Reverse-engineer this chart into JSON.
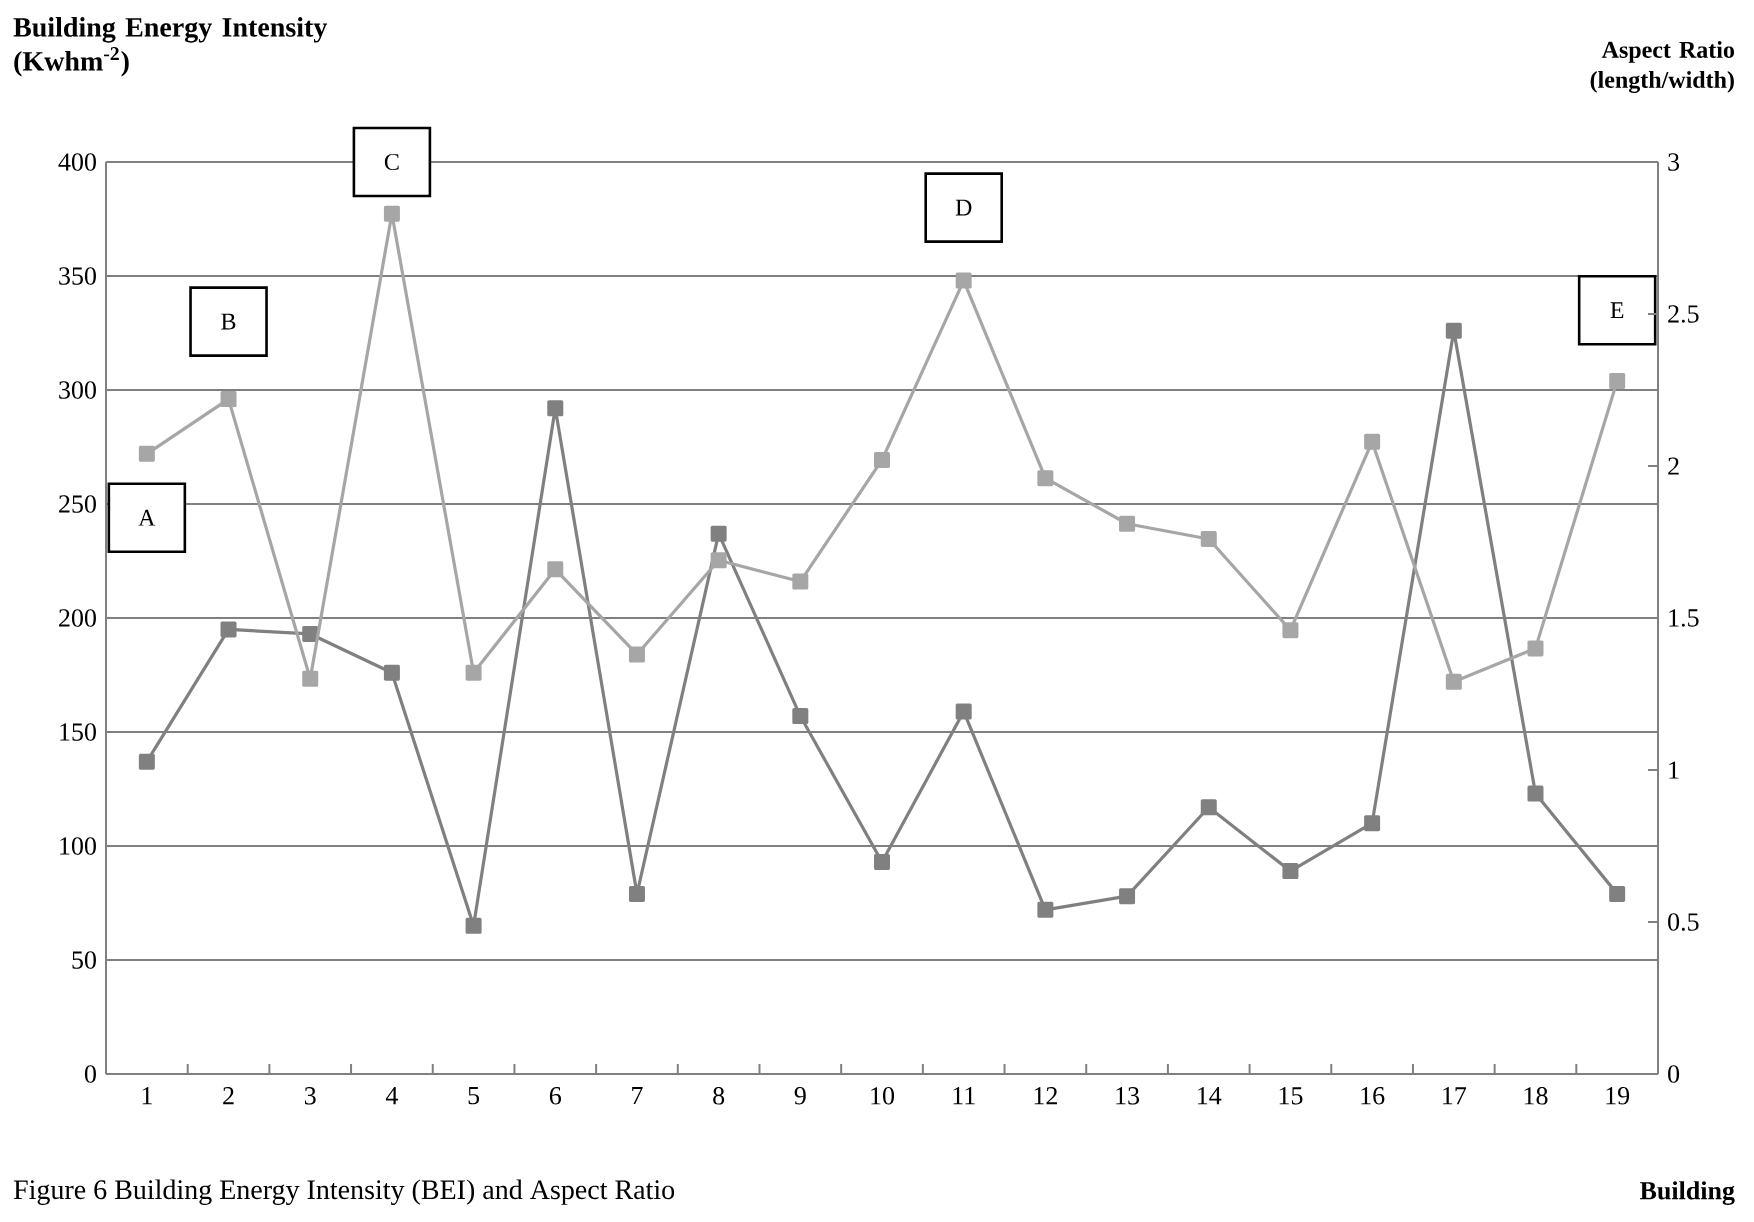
{
  "chart_data": {
    "type": "line",
    "xlabel": "Building",
    "ylabel": "Building Energy Intensity (Kwhm$^{-2}$)",
    "y2label": "Aspect Ratio (length/width)",
    "categories": [
      "1",
      "2",
      "3",
      "4",
      "5",
      "6",
      "7",
      "8",
      "9",
      "10",
      "11",
      "12",
      "13",
      "14",
      "15",
      "16",
      "17",
      "18",
      "19"
    ],
    "series": [
      {
        "color": "#808080",
        "values": [
          137,
          195,
          193,
          176,
          65,
          292,
          79,
          237,
          157,
          93,
          159,
          72,
          78,
          117,
          89,
          110,
          326,
          123,
          79
        ]
      },
      {
        "color": "#a6a6a6",
        "axis": "y2",
        "values": [
          2.04,
          2.22,
          1.3,
          2.83,
          1.32,
          1.66,
          1.38,
          1.69,
          1.62,
          2.02,
          2.61,
          1.96,
          1.81,
          1.76,
          1.46,
          2.08,
          1.29,
          1.4,
          2.28
        ]
      }
    ],
    "ylim": [
      0,
      400
    ],
    "yticks": [
      0,
      50,
      100,
      150,
      200,
      250,
      300,
      350,
      400
    ],
    "y2lim": [
      0,
      3
    ],
    "y2ticks": [
      0,
      0.5,
      1,
      1.5,
      2,
      2.5,
      3
    ],
    "grid": "y",
    "marker": "square",
    "line_style": "solid",
    "annotations": [
      {
        "text": "A",
        "x": "1",
        "y": 244
      },
      {
        "text": "B",
        "x": "2",
        "y": 330
      },
      {
        "text": "C",
        "x": "4",
        "y": 400
      },
      {
        "text": "D",
        "x": "11",
        "y": 380
      },
      {
        "text": "E",
        "x": "19",
        "y": 335
      },
      "Figure 6 Building Energy Intensity (BEI) and Aspect Ratio"
    ]
  }
}
